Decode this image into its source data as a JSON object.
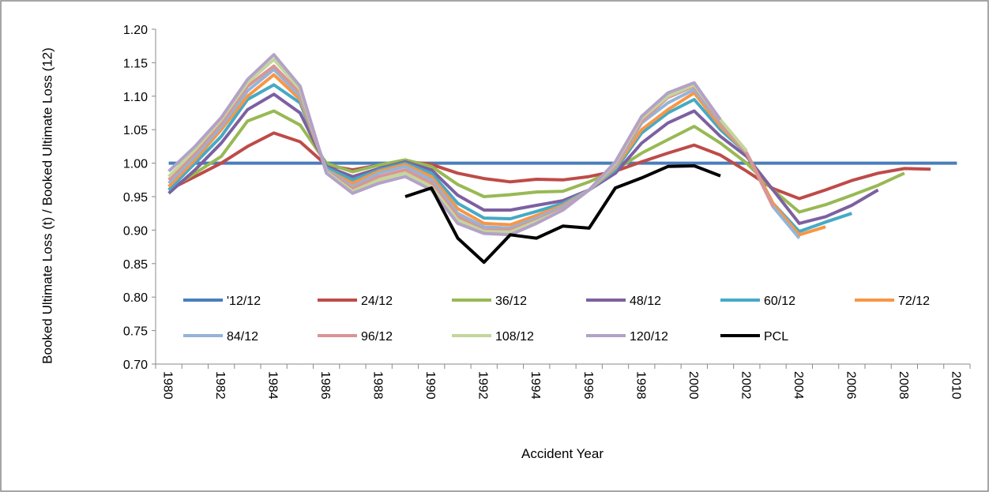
{
  "chart_data": {
    "type": "line",
    "x_label": "Accident Year",
    "y_label": "Booked Ultimate Loss (t) / Booked Ultimate Loss (12)",
    "categories": [
      "1980",
      null,
      "1982",
      null,
      "1984",
      null,
      "1986",
      null,
      "1988",
      null,
      "1990",
      null,
      "1992",
      null,
      "1994",
      null,
      "1996",
      null,
      "1998",
      null,
      "2000",
      null,
      "2002",
      null,
      "2004",
      null,
      "2006",
      null,
      "2008",
      null,
      "2010"
    ],
    "ylim": [
      0.7,
      1.2
    ],
    "yticks": [
      {
        "value": 0.7,
        "label": "0.70"
      },
      {
        "value": 0.75,
        "label": "0.75"
      },
      {
        "value": 0.8,
        "label": "0.80"
      },
      {
        "value": 0.85,
        "label": "0.85"
      },
      {
        "value": 0.9,
        "label": "0.90"
      },
      {
        "value": 0.95,
        "label": "0.95"
      },
      {
        "value": 1.0,
        "label": "1.00"
      },
      {
        "value": 1.05,
        "label": "1.05"
      },
      {
        "value": 1.1,
        "label": "1.10"
      },
      {
        "value": 1.15,
        "label": "1.15"
      },
      {
        "value": 1.2,
        "label": "1.20"
      }
    ],
    "grid": false,
    "legend": "inside-bottom",
    "series": [
      {
        "name": "'12/12",
        "color": "#4a7ebb",
        "values": [
          1,
          1,
          1,
          1,
          1,
          1,
          1,
          1,
          1,
          1,
          1,
          1,
          1,
          1,
          1,
          1,
          1,
          1,
          1,
          1,
          1,
          1,
          1,
          1,
          1,
          1,
          1,
          1,
          1,
          1,
          1
        ]
      },
      {
        "name": "24/12",
        "color": "#be4b48",
        "values": [
          0.96,
          0.98,
          1.0,
          1.025,
          1.045,
          1.032,
          0.997,
          0.99,
          0.997,
          1.003,
          0.998,
          0.985,
          0.977,
          0.972,
          0.976,
          0.975,
          0.98,
          0.988,
          1.002,
          1.015,
          1.027,
          1.012,
          0.988,
          0.962,
          0.947,
          0.96,
          0.974,
          0.985,
          0.992,
          0.991,
          null
        ]
      },
      {
        "name": "36/12",
        "color": "#98b954",
        "values": [
          0.96,
          0.985,
          1.01,
          1.063,
          1.078,
          1.057,
          1.0,
          0.987,
          0.997,
          1.005,
          0.995,
          0.968,
          0.95,
          0.953,
          0.957,
          0.958,
          0.972,
          0.99,
          1.015,
          1.035,
          1.055,
          1.03,
          1.0,
          0.96,
          0.927,
          0.938,
          0.952,
          0.967,
          0.985,
          null,
          null
        ]
      },
      {
        "name": "48/12",
        "color": "#7d60a0",
        "values": [
          0.955,
          0.99,
          1.03,
          1.08,
          1.103,
          1.075,
          0.995,
          0.98,
          0.992,
          1.002,
          0.99,
          0.952,
          0.93,
          0.93,
          0.937,
          0.944,
          0.96,
          0.985,
          1.03,
          1.06,
          1.078,
          1.04,
          1.01,
          0.96,
          0.91,
          0.92,
          0.937,
          0.96,
          null,
          null,
          null
        ]
      },
      {
        "name": "60/12",
        "color": "#46aac5",
        "values": [
          0.96,
          1.0,
          1.04,
          1.095,
          1.117,
          1.09,
          0.993,
          0.975,
          0.99,
          1.0,
          0.985,
          0.94,
          0.918,
          0.917,
          0.928,
          0.94,
          0.96,
          0.99,
          1.045,
          1.075,
          1.095,
          1.05,
          1.015,
          0.94,
          0.898,
          0.912,
          0.925,
          null,
          null,
          null,
          null
        ]
      },
      {
        "name": "72/12",
        "color": "#f79646",
        "values": [
          0.965,
          1.005,
          1.05,
          1.1,
          1.132,
          1.095,
          0.99,
          0.97,
          0.988,
          0.998,
          0.98,
          0.932,
          0.91,
          0.908,
          0.922,
          0.937,
          0.96,
          0.993,
          1.05,
          1.08,
          1.105,
          1.055,
          1.015,
          0.94,
          0.893,
          0.905,
          null,
          null,
          null,
          null,
          null
        ]
      },
      {
        "name": "84/12",
        "color": "#95b3d7",
        "values": [
          0.97,
          1.01,
          1.055,
          1.108,
          1.14,
          1.1,
          0.99,
          0.965,
          0.985,
          0.995,
          0.975,
          0.925,
          0.905,
          0.903,
          0.918,
          0.935,
          0.96,
          0.995,
          1.06,
          1.09,
          1.11,
          1.06,
          1.015,
          0.935,
          0.888,
          null,
          null,
          null,
          null,
          null,
          null
        ]
      },
      {
        "name": "96/12",
        "color": "#d99694",
        "values": [
          0.975,
          1.015,
          1.06,
          1.115,
          1.145,
          1.105,
          0.988,
          0.962,
          0.98,
          0.99,
          0.97,
          0.92,
          0.9,
          0.9,
          0.915,
          0.932,
          0.96,
          0.998,
          1.063,
          1.098,
          1.115,
          1.062,
          1.015,
          0.935,
          null,
          null,
          null,
          null,
          null,
          null,
          null
        ]
      },
      {
        "name": "108/12",
        "color": "#c3d69b",
        "values": [
          0.98,
          1.02,
          1.065,
          1.12,
          1.155,
          1.11,
          0.987,
          0.958,
          0.975,
          0.985,
          0.965,
          0.915,
          0.898,
          0.897,
          0.913,
          0.93,
          0.96,
          1.0,
          1.067,
          1.1,
          1.117,
          1.065,
          1.018,
          null,
          null,
          null,
          null,
          null,
          null,
          null,
          null
        ]
      },
      {
        "name": "120/12",
        "color": "#b3a2c7",
        "values": [
          0.988,
          1.025,
          1.068,
          1.125,
          1.162,
          1.115,
          0.985,
          0.955,
          0.97,
          0.98,
          0.96,
          0.91,
          0.895,
          0.893,
          0.91,
          0.93,
          0.96,
          1.002,
          1.07,
          1.105,
          1.12,
          1.065,
          null,
          null,
          null,
          null,
          null,
          null,
          null,
          null,
          null
        ]
      },
      {
        "name": "PCL",
        "color": "#000000",
        "values": [
          null,
          null,
          null,
          null,
          null,
          null,
          null,
          null,
          null,
          0.95,
          0.963,
          0.888,
          0.852,
          0.893,
          0.888,
          0.906,
          0.903,
          0.963,
          0.978,
          0.995,
          0.996,
          0.981,
          null,
          null,
          null,
          null,
          null,
          null,
          null,
          null,
          null
        ]
      }
    ]
  }
}
